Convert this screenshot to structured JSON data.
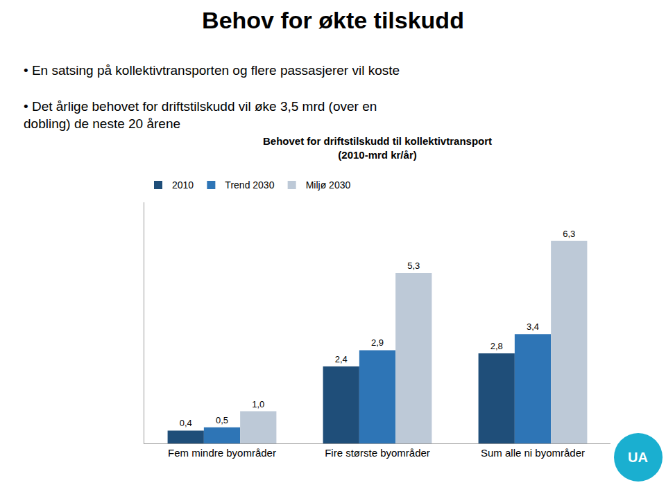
{
  "chart_data": {
    "type": "bar",
    "title": "Behov for økte tilskudd",
    "subtitle": "Behovet for driftstilskudd til kollektivtransport\n(2010-mrd kr/år)",
    "annotations": [
      {
        "text": "• En satsing på kollektivtransporten og flere passasjerer vil koste"
      },
      {
        "text": "• Det årlige behovet for driftstilskudd vil øke 3,5 mrd (over en\ndobling) de neste 20 årene"
      },
      {
        "text": "UA",
        "color": "#1AAFD0"
      }
    ],
    "categories": [
      "Fem mindre byområder",
      "Fire største byområder",
      "Sum alle ni byområder"
    ],
    "series": [
      {
        "name": "2010",
        "color": "#1F4E79",
        "values": [
          0.4,
          2.4,
          2.8
        ],
        "value_labels": [
          "0,4",
          "2,4",
          "2,8"
        ]
      },
      {
        "name": "Trend 2030",
        "color": "#2E75B6",
        "values": [
          0.5,
          2.9,
          3.4
        ],
        "value_labels": [
          "0,5",
          "2,9",
          "3,4"
        ]
      },
      {
        "name": "Miljø 2030",
        "color": "#BDC9D7",
        "values": [
          1.0,
          5.3,
          6.3
        ],
        "value_labels": [
          "1,0",
          "5,3",
          "6,3"
        ]
      }
    ],
    "ylim": [
      0,
      7.5
    ],
    "data_labels": true,
    "tick_labels": "x",
    "grid": false,
    "legend": "top"
  }
}
